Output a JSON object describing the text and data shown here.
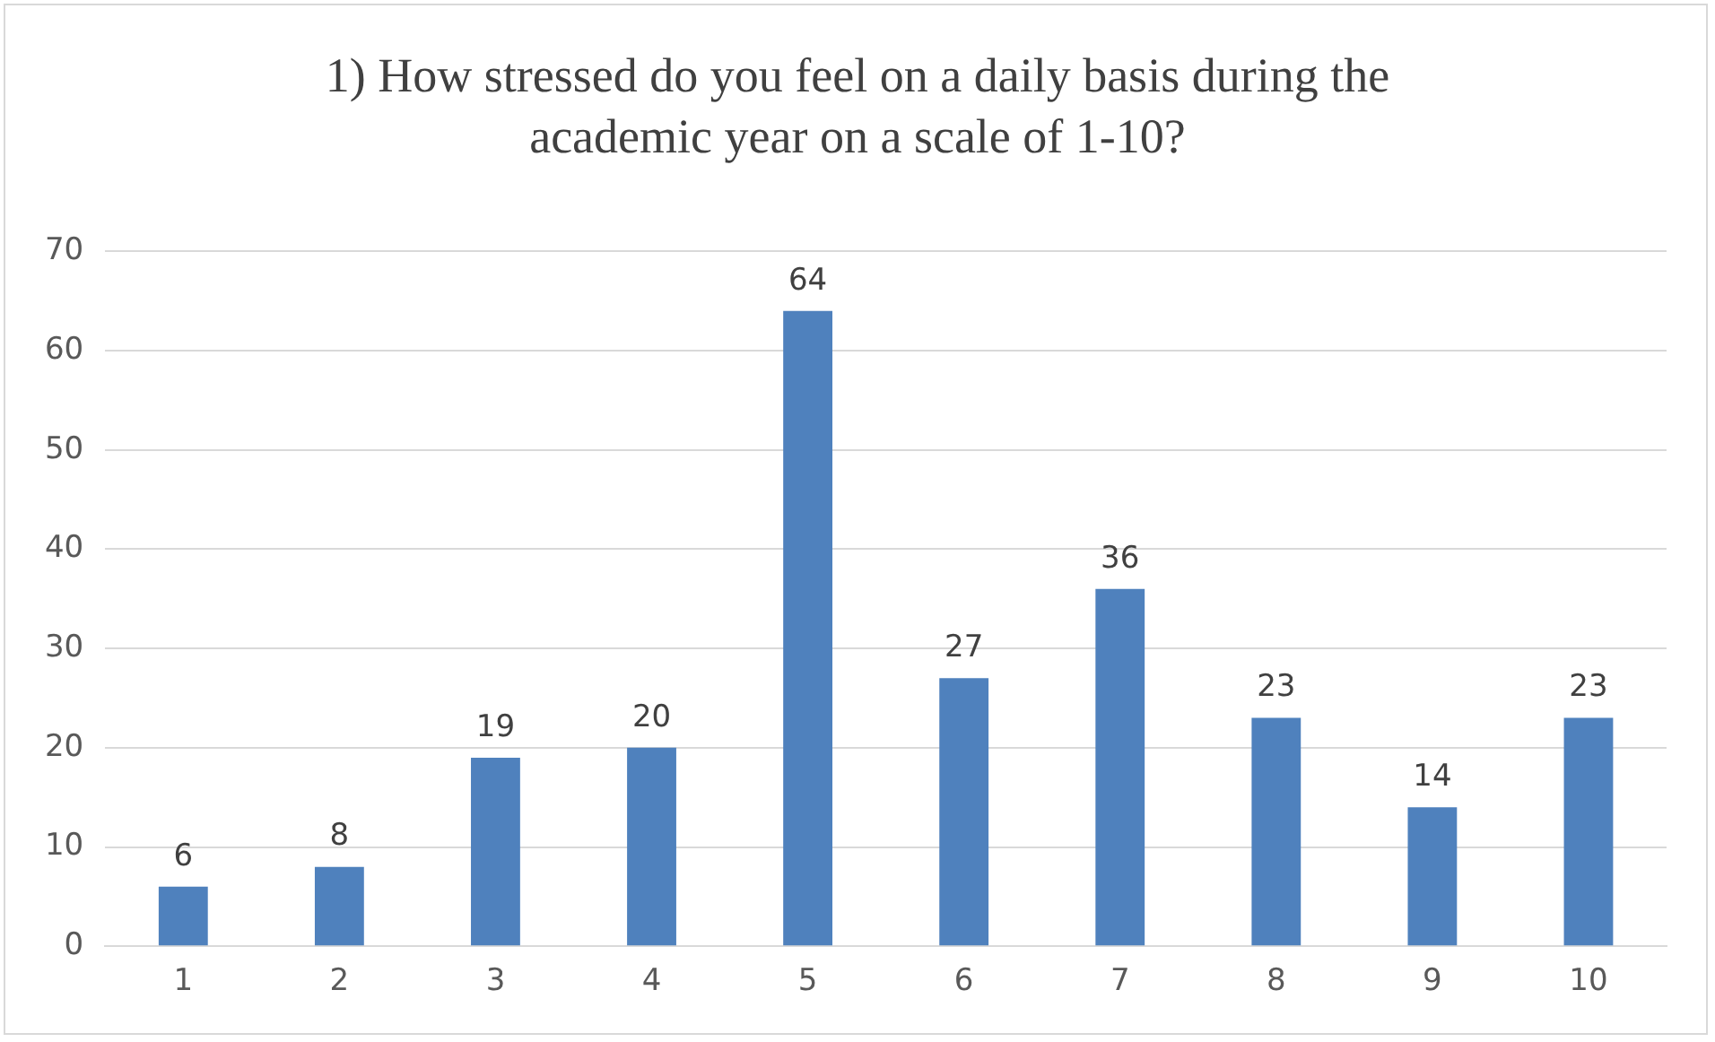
{
  "chart_data": {
    "type": "bar",
    "title": "1) How stressed do you feel on a daily basis during the academic year on a scale of 1-10?",
    "categories": [
      "1",
      "2",
      "3",
      "4",
      "5",
      "6",
      "7",
      "8",
      "9",
      "10"
    ],
    "values": [
      6,
      8,
      19,
      20,
      64,
      27,
      36,
      23,
      14,
      23
    ],
    "color": "#4f81bd",
    "ylim": [
      0,
      70
    ],
    "yticks": [
      0,
      10,
      20,
      30,
      40,
      50,
      60,
      70
    ],
    "grid": "y",
    "data_labels": true,
    "legend": false
  }
}
